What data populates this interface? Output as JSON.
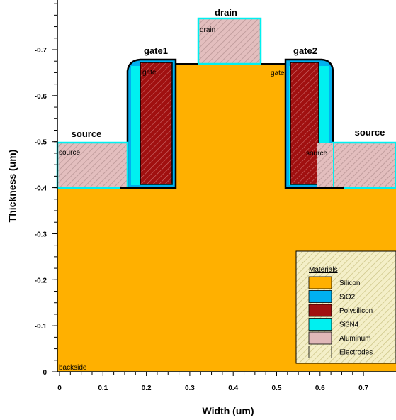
{
  "figure": {
    "xlabel": "Width (um)",
    "ylabel": "Thickness (um)",
    "x_ticks": [
      "0",
      "0.1",
      "0.2",
      "0.3",
      "0.4",
      "0.5",
      "0.6",
      "0.7"
    ],
    "y_ticks": [
      "-0.7",
      "-0.6",
      "-0.5",
      "-0.4",
      "-0.3",
      "-0.2",
      "-0.1",
      "0"
    ]
  },
  "regions": {
    "electrodes": {
      "drain_label": "drain",
      "drain_inner": "drain",
      "gate1_label": "gate1",
      "gate1_inner": "gate",
      "gate2_label": "gate2",
      "gate2_inner": "gate",
      "source_left_label": "source",
      "source_left_inner": "source",
      "source_right_label": "source",
      "source_right_inner": "source",
      "backside": "backside"
    }
  },
  "legend": {
    "title": "Materials",
    "items": [
      {
        "label": "Silicon",
        "color": "#FFB000",
        "icon": "solid-swatch"
      },
      {
        "label": "SiO2",
        "color": "#00B0F0",
        "icon": "solid-swatch"
      },
      {
        "label": "Polysilicon",
        "color": "#A01010",
        "icon": "solid-swatch"
      },
      {
        "label": "Si3N4",
        "color": "#00F0F0",
        "icon": "solid-swatch"
      },
      {
        "label": "Aluminum",
        "color": "#E0B8B8",
        "icon": "solid-swatch"
      },
      {
        "label": "Electrodes",
        "color": "#E8E8A0",
        "icon": "hatched-swatch"
      }
    ]
  },
  "colors": {
    "silicon": "#FFB000",
    "sio2": "#00B0F0",
    "polysilicon": "#A01010",
    "si3n4": "#00F0F0",
    "aluminum": "#E0B8B8",
    "hatch_aluminum": "#B09090",
    "hatch_poly": "#C06060",
    "outline": "#000000"
  }
}
